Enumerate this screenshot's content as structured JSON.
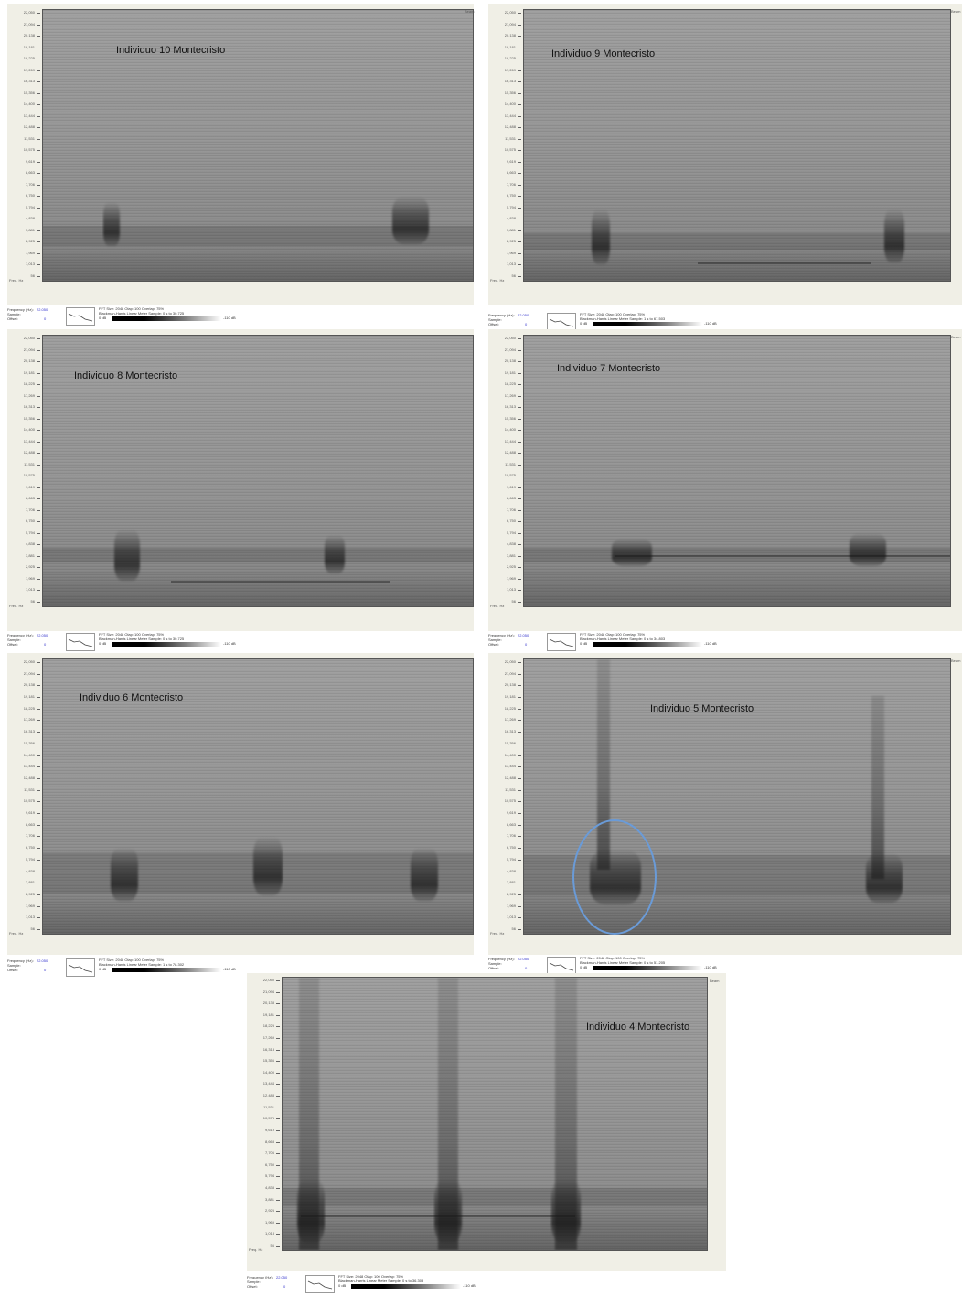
{
  "panels": [
    {
      "title": "Individuo 10 Montecristo",
      "footer": {
        "val_top": "22.050",
        "val_bottom": "0",
        "params": "FFT Size: 2048   Olap: 100   Overlap: 75%",
        "scale": "Blackman-Harris   Linear   Meter   Sample: 0 s to 30.725",
        "db_low": "0  dB",
        "db_high": "-110 dB"
      }
    },
    {
      "title": "Individuo 9 Montecristo",
      "footer": {
        "val_top": "22.050",
        "val_bottom": "0",
        "params": "FFT Size: 2048   Olap: 100   Overlap: 75%",
        "scale": "Blackman-Harris   Linear   Meter   Sample: 1 s to 67.503",
        "db_low": "0  dB",
        "db_high": "-110 dB"
      }
    },
    {
      "title": "Individuo 8 Montecristo",
      "footer": {
        "val_top": "22.050",
        "val_bottom": "0",
        "params": "FFT Size: 2048   Olap: 100   Overlap: 75%",
        "scale": "Blackman-Harris   Linear   Meter   Sample: 0 s to 30.725",
        "db_low": "0  dB",
        "db_high": "-110 dB"
      }
    },
    {
      "title": "Individuo 7 Montecristo",
      "footer": {
        "val_top": "22.050",
        "val_bottom": "0",
        "params": "FFT Size: 2048   Olap: 100   Overlap: 75%",
        "scale": "Blackman-Harris   Linear   Meter   Sample: 0 s to 34.803",
        "db_low": "0  dB",
        "db_high": "-110 dB"
      }
    },
    {
      "title": "Individuo 6 Montecristo",
      "footer": {
        "val_top": "22.050",
        "val_bottom": "0",
        "params": "FFT Size: 2048   Olap: 100   Overlap: 75%",
        "scale": "Blackman-Harris   Linear   Meter   Sample: 1 s to 78.302",
        "db_low": "0  dB",
        "db_high": "-110 dB"
      }
    },
    {
      "title": "Individuo 5 Montecristo",
      "footer": {
        "val_top": "22.050",
        "val_bottom": "0",
        "params": "FFT Size: 2048   Olap: 100   Overlap: 75%",
        "scale": "Blackman-Harris   Linear   Meter   Sample: 0 s to 51.205",
        "db_low": "0  dB",
        "db_high": "-110 dB"
      }
    },
    {
      "title": "Individuo 4 Montecristo",
      "footer": {
        "val_top": "22.050",
        "val_bottom": "0",
        "params": "FFT Size: 2048   Olap: 100   Overlap: 75%",
        "scale": "Blackman-Harris   Linear   Meter   Sample: 0 s to 36.303",
        "db_low": "0  dB",
        "db_high": "-110 dB"
      }
    }
  ],
  "axis": {
    "y_ticks": [
      "22,050",
      "21,094",
      "20,138",
      "19,181",
      "18,225",
      "17,269",
      "16,313",
      "15,356",
      "14,400",
      "13,444",
      "12,488",
      "11,531",
      "10,575",
      "9,619",
      "8,663",
      "7,706",
      "6,750",
      "5,794",
      "4,838",
      "3,881",
      "2,925",
      "1,969",
      "1,013",
      "56"
    ],
    "y_unit": "Freq. Hz",
    "x_unit": "Beam",
    "footer_label1": "Frequency (Hz):",
    "footer_label2": "Sample:",
    "footer_label3": "Offset:"
  },
  "colors": {
    "window_bg": "#f0efe6",
    "plot_bg": "#8e8e8e",
    "circle": "#6a9bd8"
  }
}
